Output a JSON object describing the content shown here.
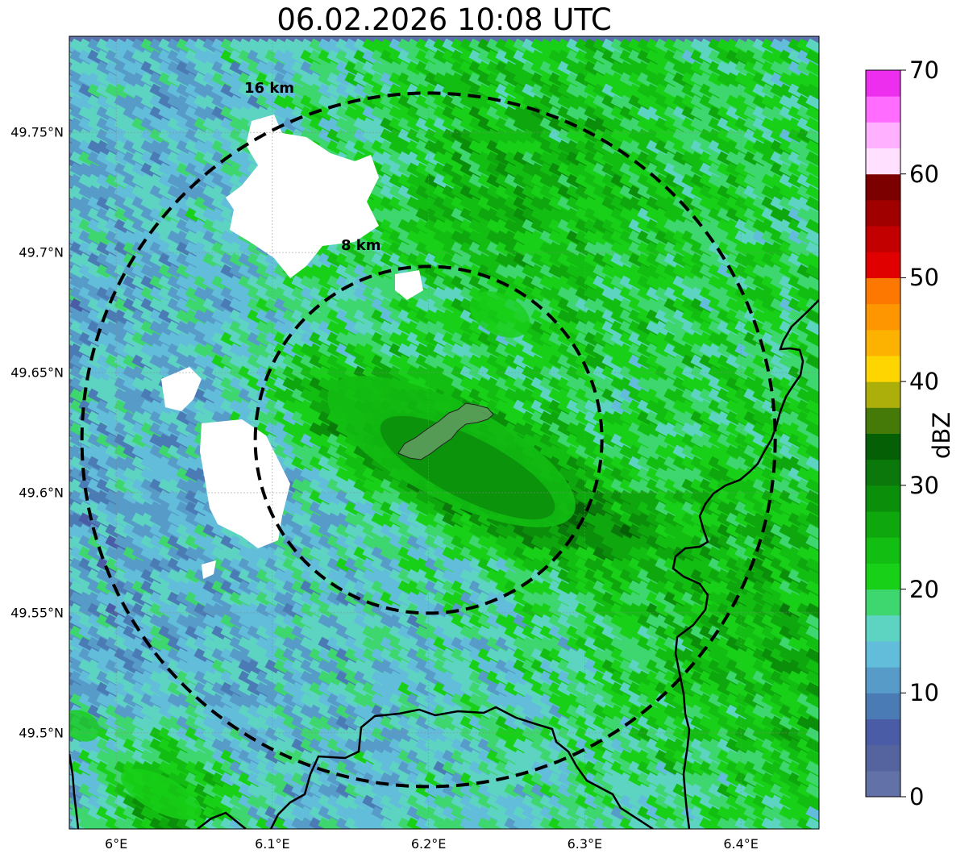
{
  "title": "06.02.2026 10:08 UTC",
  "map": {
    "lon_range": [
      5.97,
      6.45
    ],
    "lat_range": [
      49.46,
      49.79
    ],
    "radar_center": [
      6.2,
      49.622
    ],
    "background_color": "#5d72ad",
    "lat_ticks": [
      {
        "value": 49.75,
        "label": "49.75°N"
      },
      {
        "value": 49.7,
        "label": "49.7°N"
      },
      {
        "value": 49.65,
        "label": "49.65°N"
      },
      {
        "value": 49.6,
        "label": "49.6°N"
      },
      {
        "value": 49.55,
        "label": "49.55°N"
      },
      {
        "value": 49.5,
        "label": "49.5°N"
      }
    ],
    "lon_ticks": [
      {
        "value": 6.0,
        "label": "6°E"
      },
      {
        "value": 6.1,
        "label": "6.1°E"
      },
      {
        "value": 6.2,
        "label": "6.2°E"
      },
      {
        "value": 6.3,
        "label": "6.3°E"
      },
      {
        "value": 6.4,
        "label": "6.4°E"
      }
    ],
    "range_rings": [
      {
        "radius_km": 8,
        "label": "8 km"
      },
      {
        "radius_km": 16,
        "label": "16 km"
      }
    ]
  },
  "colorbar": {
    "label": "dBZ",
    "min": 0,
    "max": 70,
    "ticks": [
      "0",
      "10",
      "20",
      "30",
      "40",
      "50",
      "60",
      "70"
    ],
    "colors": [
      "#6271a8",
      "#55639f",
      "#4a5ca5",
      "#4b7bb5",
      "#579cc9",
      "#62bddb",
      "#5dd4c1",
      "#3ed66e",
      "#18d018",
      "#12be12",
      "#0ea70e",
      "#0b8f0b",
      "#0a780a",
      "#056005",
      "#467a08",
      "#acaf09",
      "#fed500",
      "#fdb100",
      "#fd9600",
      "#fc7800",
      "#e00000",
      "#c30000",
      "#a00000",
      "#7c0000",
      "#ffe0ff",
      "#ffb0ff",
      "#ff6cff",
      "#ee2eee"
    ]
  },
  "features": {
    "highlight_area_color": "#5a9a5a",
    "border_color": "#000000",
    "ring_color": "#000000"
  }
}
